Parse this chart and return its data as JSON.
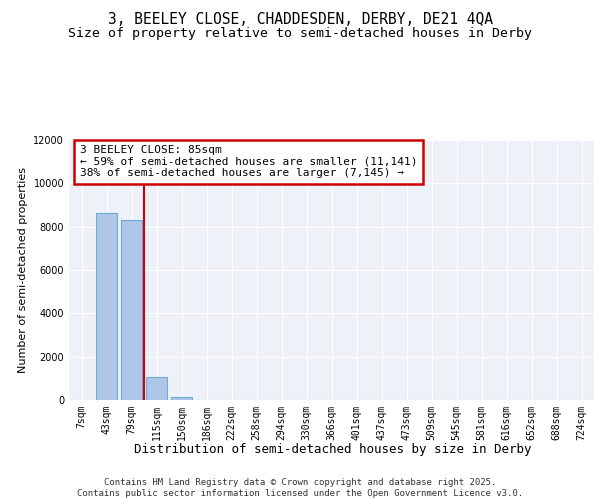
{
  "title_line1": "3, BEELEY CLOSE, CHADDESDEN, DERBY, DE21 4QA",
  "title_line2": "Size of property relative to semi-detached houses in Derby",
  "xlabel": "Distribution of semi-detached houses by size in Derby",
  "ylabel": "Number of semi-detached properties",
  "categories": [
    "7sqm",
    "43sqm",
    "79sqm",
    "115sqm",
    "150sqm",
    "186sqm",
    "222sqm",
    "258sqm",
    "294sqm",
    "330sqm",
    "366sqm",
    "401sqm",
    "437sqm",
    "473sqm",
    "509sqm",
    "545sqm",
    "581sqm",
    "616sqm",
    "652sqm",
    "688sqm",
    "724sqm"
  ],
  "values": [
    0,
    8650,
    8300,
    1050,
    150,
    20,
    5,
    2,
    1,
    0,
    0,
    0,
    0,
    0,
    0,
    0,
    0,
    0,
    0,
    0,
    0
  ],
  "bar_color": "#aec6e8",
  "bar_edge_color": "#6aaad4",
  "highlight_line_color": "#cc0000",
  "annotation_box_text": "3 BEELEY CLOSE: 85sqm\n← 59% of semi-detached houses are smaller (11,141)\n38% of semi-detached houses are larger (7,145) →",
  "annotation_box_color": "#cc0000",
  "ylim": [
    0,
    12000
  ],
  "yticks": [
    0,
    2000,
    4000,
    6000,
    8000,
    10000,
    12000
  ],
  "footnote": "Contains HM Land Registry data © Crown copyright and database right 2025.\nContains public sector information licensed under the Open Government Licence v3.0.",
  "background_color": "#eef2f8",
  "grid_color": "#ffffff",
  "title_fontsize": 10.5,
  "subtitle_fontsize": 9.5,
  "xlabel_fontsize": 9,
  "ylabel_fontsize": 8,
  "tick_fontsize": 7,
  "annotation_fontsize": 8,
  "footnote_fontsize": 6.5
}
